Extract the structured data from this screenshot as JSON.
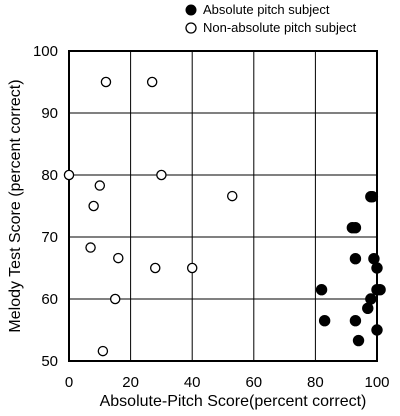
{
  "chart_data": {
    "type": "scatter",
    "title": "",
    "xlabel": "Absolute-Pitch Score(percent correct)",
    "ylabel": "Melody Test Score (percent correct)",
    "xlim": [
      0,
      100
    ],
    "ylim": [
      50,
      100
    ],
    "x_ticks": [
      "0",
      "20",
      "40",
      "60",
      "80",
      "100"
    ],
    "y_ticks": [
      "50",
      "60",
      "70",
      "80",
      "90",
      "100"
    ],
    "grid": true,
    "legend_position": "top-right",
    "series": [
      {
        "name": "Absolute pitch subject",
        "marker": "filled-circle",
        "color": "#000000",
        "points": [
          [
            98,
            76.5
          ],
          [
            98.5,
            76.5
          ],
          [
            92,
            71.5
          ],
          [
            93,
            71.5
          ],
          [
            99,
            66.5
          ],
          [
            93,
            66.5
          ],
          [
            100,
            65
          ],
          [
            82,
            61.5
          ],
          [
            100,
            61.5
          ],
          [
            101,
            61.5
          ],
          [
            98,
            60
          ],
          [
            97,
            58.5
          ],
          [
            83,
            56.5
          ],
          [
            93,
            56.5
          ],
          [
            100,
            55
          ],
          [
            94,
            53.3
          ]
        ]
      },
      {
        "name": "Non-absolute pitch subject",
        "marker": "open-circle",
        "color": "#000000",
        "points": [
          [
            12,
            95
          ],
          [
            27,
            95
          ],
          [
            0,
            80
          ],
          [
            30,
            80
          ],
          [
            10,
            78.3
          ],
          [
            53,
            76.6
          ],
          [
            8,
            75
          ],
          [
            7,
            68.3
          ],
          [
            16,
            66.6
          ],
          [
            28,
            65
          ],
          [
            40,
            65
          ],
          [
            15,
            60
          ],
          [
            11,
            51.6
          ]
        ]
      }
    ]
  }
}
